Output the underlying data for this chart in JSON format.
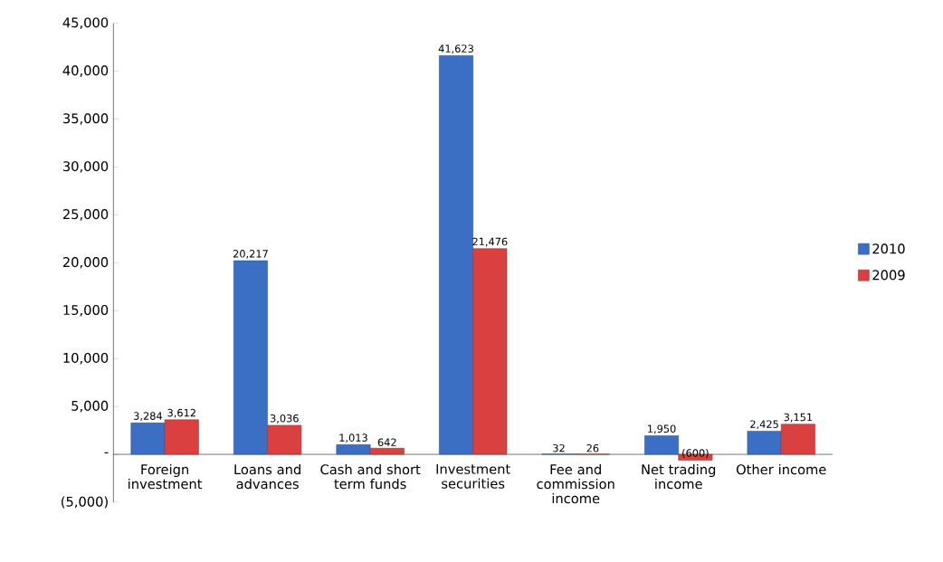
{
  "chart_data": {
    "type": "bar",
    "categories": [
      "Foreign investment",
      "Loans and advances",
      "Cash and short term funds",
      "Investment securities",
      "Fee and commission income",
      "Net trading income",
      "Other income"
    ],
    "series": [
      {
        "name": "2010",
        "color": "#3a6fc4",
        "values": [
          3284,
          20217,
          1013,
          41623,
          32,
          1950,
          2425
        ],
        "value_labels": [
          "3,284",
          "20,217",
          "1,013",
          "41,623",
          "32",
          "1,950",
          "2,425"
        ]
      },
      {
        "name": "2009",
        "color": "#d9403f",
        "values": [
          3612,
          3036,
          642,
          21476,
          26,
          -600,
          3151
        ],
        "value_labels": [
          "3,612",
          "3,036",
          "642",
          "21,476",
          "26",
          "(600)",
          "3,151"
        ]
      }
    ],
    "ylim": [
      -5000,
      45000
    ],
    "yticks": [
      {
        "value": -5000,
        "label": "(5,000)"
      },
      {
        "value": 0,
        "label": "-"
      },
      {
        "value": 5000,
        "label": "5,000"
      },
      {
        "value": 10000,
        "label": "10,000"
      },
      {
        "value": 15000,
        "label": "15,000"
      },
      {
        "value": 20000,
        "label": "20,000"
      },
      {
        "value": 25000,
        "label": "25,000"
      },
      {
        "value": 30000,
        "label": "30,000"
      },
      {
        "value": 35000,
        "label": "35,000"
      },
      {
        "value": 40000,
        "label": "40,000"
      },
      {
        "value": 45000,
        "label": "45,000"
      }
    ],
    "grid": false,
    "legend": "right"
  }
}
